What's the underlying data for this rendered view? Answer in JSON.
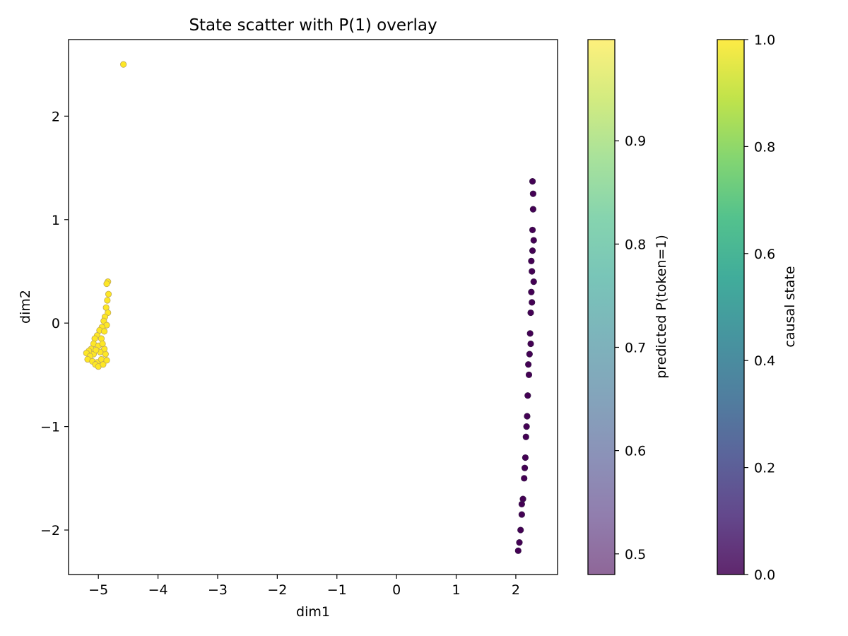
{
  "chart_data": {
    "type": "scatter",
    "title": "State scatter with P(1) overlay",
    "xlabel": "dim1",
    "ylabel": "dim2",
    "xlim": [
      -5.5,
      2.7
    ],
    "ylim": [
      -2.43,
      2.74
    ],
    "xticks": [
      -5,
      -4,
      -3,
      -2,
      -1,
      0,
      1,
      2
    ],
    "xtick_labels": [
      "−5",
      "−4",
      "−3",
      "−2",
      "−1",
      "0",
      "1",
      "2"
    ],
    "yticks": [
      -2,
      -1,
      0,
      1,
      2
    ],
    "ytick_labels": [
      "−2",
      "−1",
      "0",
      "1",
      "2"
    ],
    "grid": false,
    "clusters": [
      {
        "name": "state-1-cluster",
        "causal_state": 1,
        "predicted_p": 0.99,
        "color": "#fde725",
        "outline": "#bfa75a",
        "points": [
          [
            -4.84,
            0.4
          ],
          [
            -4.86,
            0.38
          ],
          [
            -4.83,
            0.28
          ],
          [
            -4.85,
            0.22
          ],
          [
            -4.87,
            0.15
          ],
          [
            -4.84,
            0.1
          ],
          [
            -4.89,
            0.06
          ],
          [
            -4.91,
            0.02
          ],
          [
            -4.86,
            -0.02
          ],
          [
            -4.94,
            -0.04
          ],
          [
            -4.98,
            -0.07
          ],
          [
            -4.9,
            -0.08
          ],
          [
            -5.02,
            -0.12
          ],
          [
            -5.06,
            -0.15
          ],
          [
            -4.95,
            -0.15
          ],
          [
            -5.08,
            -0.2
          ],
          [
            -5.0,
            -0.22
          ],
          [
            -5.12,
            -0.25
          ],
          [
            -5.16,
            -0.27
          ],
          [
            -5.2,
            -0.29
          ],
          [
            -5.08,
            -0.3
          ],
          [
            -5.14,
            -0.32
          ],
          [
            -5.18,
            -0.35
          ],
          [
            -5.1,
            -0.37
          ],
          [
            -5.02,
            -0.38
          ],
          [
            -5.05,
            -0.4
          ],
          [
            -5.0,
            -0.42
          ],
          [
            -4.95,
            -0.35
          ],
          [
            -4.88,
            -0.3
          ],
          [
            -4.92,
            -0.4
          ],
          [
            -4.86,
            -0.36
          ],
          [
            -4.9,
            -0.25
          ],
          [
            -4.97,
            -0.28
          ],
          [
            -5.04,
            -0.26
          ],
          [
            -4.93,
            -0.2
          ]
        ],
        "outliers": [
          [
            -4.58,
            2.5
          ]
        ]
      },
      {
        "name": "state-0-cluster",
        "causal_state": 0,
        "predicted_p": 0.48,
        "color": "#440154",
        "outline": "#3a1a4a",
        "points": [
          [
            2.04,
            -2.2
          ],
          [
            2.06,
            -2.12
          ],
          [
            2.08,
            -2.0
          ],
          [
            2.1,
            -1.85
          ],
          [
            2.12,
            -1.7
          ],
          [
            2.14,
            -1.5
          ],
          [
            2.16,
            -1.3
          ],
          [
            2.17,
            -1.1
          ],
          [
            2.19,
            -0.9
          ],
          [
            2.2,
            -0.7
          ],
          [
            2.22,
            -0.5
          ],
          [
            2.23,
            -0.3
          ],
          [
            2.24,
            -0.1
          ],
          [
            2.25,
            0.1
          ],
          [
            2.26,
            0.3
          ],
          [
            2.27,
            0.5
          ],
          [
            2.28,
            0.7
          ],
          [
            2.28,
            0.9
          ],
          [
            2.29,
            1.1
          ],
          [
            2.29,
            1.25
          ],
          [
            2.28,
            1.37
          ],
          [
            2.3,
            0.8
          ],
          [
            2.26,
            0.6
          ],
          [
            2.27,
            0.2
          ],
          [
            2.21,
            -0.4
          ],
          [
            2.3,
            0.4
          ],
          [
            2.25,
            -0.2
          ],
          [
            2.18,
            -1.0
          ],
          [
            2.15,
            -1.4
          ],
          [
            2.1,
            -1.75
          ]
        ],
        "outliers": []
      }
    ],
    "colorbars": [
      {
        "name": "predicted-p-colorbar",
        "label": "predicted P(token=1)",
        "range": [
          0.48,
          0.998
        ],
        "ticks": [
          0.5,
          0.6,
          0.7,
          0.8,
          0.9
        ],
        "tick_labels": [
          "0.5",
          "0.6",
          "0.7",
          "0.8",
          "0.9"
        ],
        "alpha": 0.6
      },
      {
        "name": "causal-state-colorbar",
        "label": "causal state",
        "range": [
          0.0,
          1.0
        ],
        "ticks": [
          0.0,
          0.2,
          0.4,
          0.6,
          0.8,
          1.0
        ],
        "tick_labels": [
          "0.0",
          "0.2",
          "0.4",
          "0.6",
          "0.8",
          "1.0"
        ],
        "alpha": 0.85
      }
    ],
    "colormap": [
      "#440154",
      "#482878",
      "#3e4989",
      "#31688e",
      "#26828e",
      "#1f9e89",
      "#35b779",
      "#6ece58",
      "#b5de2b",
      "#fde725"
    ]
  }
}
